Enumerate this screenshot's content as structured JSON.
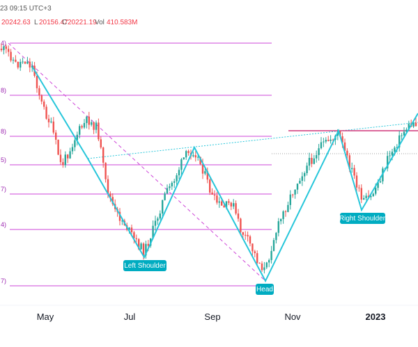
{
  "header": {
    "time": "23 09:15 UTC+3",
    "ohlc": [
      {
        "prefix": "",
        "value": "20242.63"
      },
      {
        "prefix": "L",
        "value": "20156.47"
      },
      {
        "prefix": "C",
        "value": "20221.19"
      },
      {
        "prefix": "Vol",
        "value": "410.583M"
      }
    ]
  },
  "colors": {
    "up": "#26a69a",
    "down": "#ef5350",
    "pattern": "#26c6da",
    "fib": "#ce45d8",
    "label_bg": "#00acc1",
    "neckline": "#d1377a"
  },
  "chart_data": {
    "type": "candlestick",
    "x_ticks": [
      "May",
      "Jul",
      "Sep",
      "Nov",
      "2023"
    ],
    "fib_level_labels": [
      "4)",
      "8)",
      "8)",
      "5)",
      "7)",
      "4)",
      "7)"
    ],
    "annotations": [
      {
        "text": "Left Shoulder"
      },
      {
        "text": "Head"
      },
      {
        "text": "Right Shoulder"
      }
    ],
    "trend_lines": [
      "head-and-shoulders zigzag",
      "neckline",
      "dashed diagonal",
      "dotted trend"
    ]
  }
}
